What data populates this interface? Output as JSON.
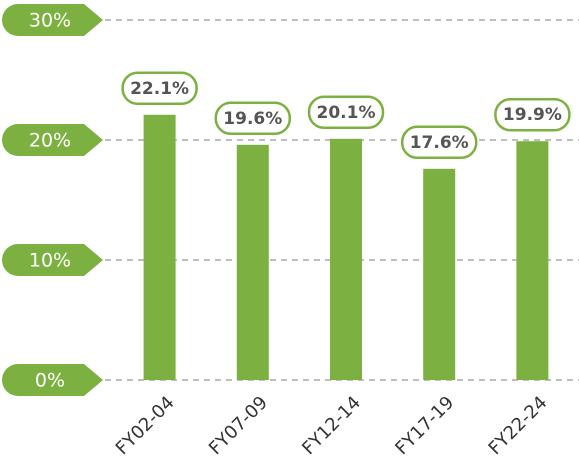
{
  "chart_data": {
    "type": "bar",
    "categories": [
      "FY02-04",
      "FY07-09",
      "FY12-14",
      "FY17-19",
      "FY22-24"
    ],
    "values": [
      22.1,
      19.6,
      20.1,
      17.6,
      19.9
    ],
    "value_labels": [
      "22.1%",
      "19.6%",
      "20.1%",
      "17.6%",
      "19.9%"
    ],
    "color": "#7cb142",
    "ylim": [
      0,
      30
    ],
    "yticks": [
      {
        "value": 0,
        "label": "0%"
      },
      {
        "value": 10,
        "label": "10%"
      },
      {
        "value": 20,
        "label": "20%"
      },
      {
        "value": 30,
        "label": "30%"
      }
    ],
    "grid": true
  }
}
